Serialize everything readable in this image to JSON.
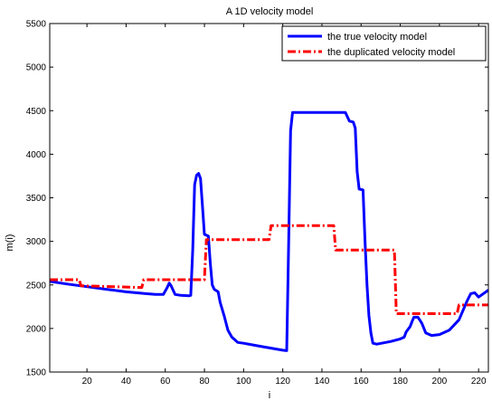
{
  "chart_data": {
    "type": "line",
    "title": "A 1D velocity model",
    "xlabel": "i",
    "ylabel": "m(i)",
    "xlim": [
      1,
      225
    ],
    "ylim": [
      1500,
      5500
    ],
    "xticks": [
      20,
      40,
      60,
      80,
      100,
      120,
      140,
      160,
      180,
      200,
      220
    ],
    "yticks": [
      1500,
      2000,
      2500,
      3000,
      3500,
      4000,
      4500,
      5000,
      5500
    ],
    "grid": false,
    "legend": "top-right",
    "series": [
      {
        "name": "the true velocity model",
        "color": "#0000ff",
        "style": "solid",
        "points": [
          [
            1,
            2540
          ],
          [
            10,
            2510
          ],
          [
            20,
            2480
          ],
          [
            30,
            2450
          ],
          [
            40,
            2420
          ],
          [
            50,
            2400
          ],
          [
            55,
            2390
          ],
          [
            59,
            2390
          ],
          [
            61,
            2470
          ],
          [
            62,
            2520
          ],
          [
            63,
            2490
          ],
          [
            65,
            2390
          ],
          [
            68,
            2380
          ],
          [
            72,
            2375
          ],
          [
            73,
            2380
          ],
          [
            74,
            2900
          ],
          [
            75,
            3650
          ],
          [
            76,
            3760
          ],
          [
            77,
            3780
          ],
          [
            78,
            3720
          ],
          [
            79,
            3400
          ],
          [
            80,
            3080
          ],
          [
            81,
            3070
          ],
          [
            82,
            3060
          ],
          [
            83,
            2750
          ],
          [
            84,
            2500
          ],
          [
            85,
            2450
          ],
          [
            87,
            2420
          ],
          [
            88,
            2300
          ],
          [
            90,
            2150
          ],
          [
            92,
            1980
          ],
          [
            94,
            1900
          ],
          [
            97,
            1840
          ],
          [
            100,
            1830
          ],
          [
            110,
            1790
          ],
          [
            120,
            1750
          ],
          [
            122,
            1745
          ],
          [
            123,
            3000
          ],
          [
            124,
            4270
          ],
          [
            125,
            4480
          ],
          [
            130,
            4480
          ],
          [
            140,
            4480
          ],
          [
            150,
            4480
          ],
          [
            152,
            4480
          ],
          [
            154,
            4380
          ],
          [
            156,
            4370
          ],
          [
            157,
            4300
          ],
          [
            158,
            3800
          ],
          [
            159,
            3600
          ],
          [
            161,
            3590
          ],
          [
            162,
            3000
          ],
          [
            163,
            2500
          ],
          [
            164,
            2150
          ],
          [
            165,
            1950
          ],
          [
            166,
            1830
          ],
          [
            168,
            1820
          ],
          [
            175,
            1850
          ],
          [
            180,
            1880
          ],
          [
            182,
            1900
          ],
          [
            183,
            1960
          ],
          [
            185,
            2020
          ],
          [
            186,
            2080
          ],
          [
            187,
            2130
          ],
          [
            189,
            2130
          ],
          [
            191,
            2060
          ],
          [
            193,
            1950
          ],
          [
            196,
            1920
          ],
          [
            200,
            1930
          ],
          [
            205,
            1980
          ],
          [
            210,
            2100
          ],
          [
            214,
            2310
          ],
          [
            216,
            2400
          ],
          [
            218,
            2410
          ],
          [
            220,
            2360
          ],
          [
            225,
            2440
          ]
        ]
      },
      {
        "name": "the duplicated velocity model",
        "color": "#ff0000",
        "style": "dash-dot",
        "points": [
          [
            1,
            2560
          ],
          [
            16,
            2560
          ],
          [
            17,
            2490
          ],
          [
            48,
            2470
          ],
          [
            49,
            2560
          ],
          [
            80,
            2560
          ],
          [
            81,
            3020
          ],
          [
            113,
            3020
          ],
          [
            114,
            3180
          ],
          [
            146,
            3180
          ],
          [
            147,
            2900
          ],
          [
            177,
            2900
          ],
          [
            178,
            2170
          ],
          [
            209,
            2170
          ],
          [
            210,
            2270
          ],
          [
            225,
            2270
          ]
        ]
      }
    ]
  }
}
